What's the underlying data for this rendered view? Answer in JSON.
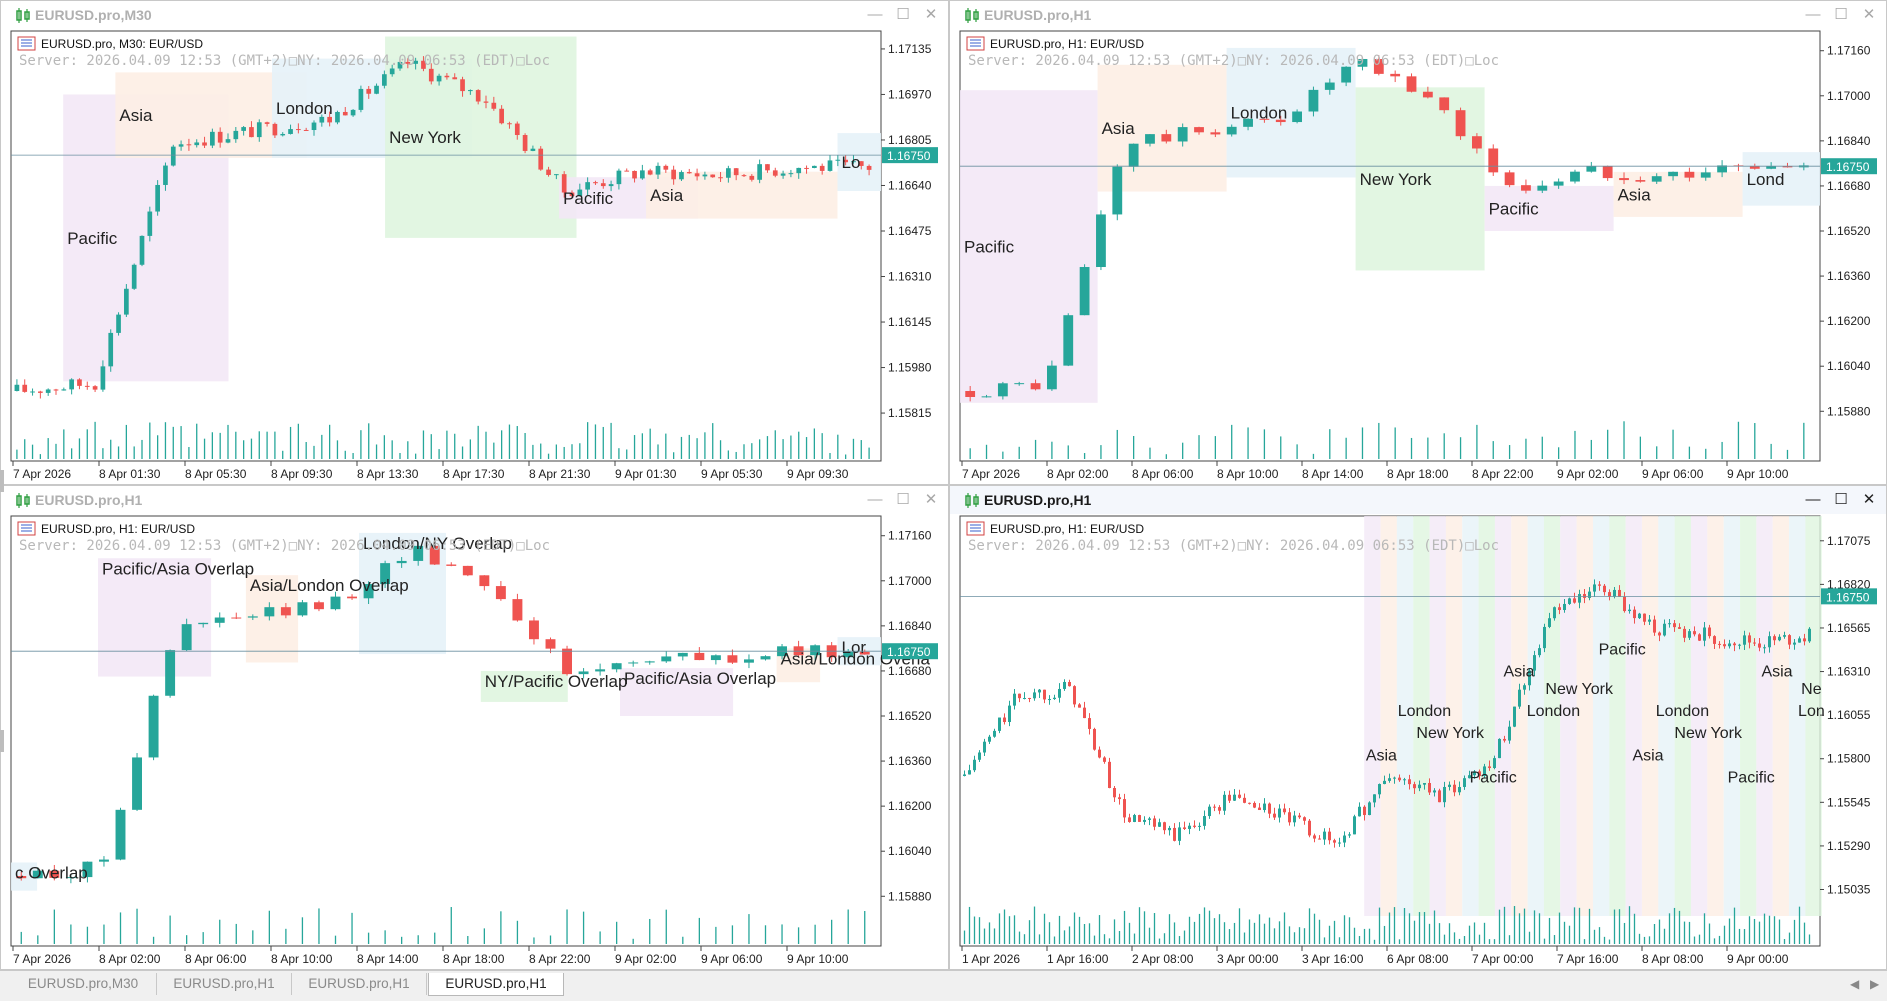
{
  "charts": [
    {
      "title": "EURUSD.pro,M30",
      "subtitle": "EURUSD.pro, M30:  EUR/USD",
      "server_line": "Server: 2026.04.09 12:53 (GMT+2)□NY: 2026.04.09 06:53 (EDT)□Loc",
      "price_ticks": [
        "1.17135",
        "1.16970",
        "1.16805",
        "1.16640",
        "1.16475",
        "1.16310",
        "1.16145",
        "1.15980",
        "1.15815"
      ],
      "price_min": 1.1575,
      "price_max": 1.172,
      "current_price": "1.16750",
      "current_value": 1.1675,
      "time_labels": [
        "7 Apr 2026",
        "8 Apr 01:30",
        "8 Apr 05:30",
        "8 Apr 09:30",
        "8 Apr 13:30",
        "8 Apr 17:30",
        "8 Apr 21:30",
        "9 Apr 01:30",
        "9 Apr 05:30",
        "9 Apr 09:30"
      ],
      "sessions": [
        {
          "name": "Pacific",
          "type": "pacific",
          "from": 0.06,
          "to": 0.25,
          "hi": 1.1697,
          "lo": 1.1593
        },
        {
          "name": "Asia",
          "type": "asia",
          "from": 0.12,
          "to": 0.34,
          "hi": 1.1705,
          "lo": 1.1674
        },
        {
          "name": "London",
          "type": "london",
          "from": 0.3,
          "to": 0.53,
          "hi": 1.171,
          "lo": 1.1674
        },
        {
          "name": "New York",
          "type": "ny",
          "from": 0.43,
          "to": 0.65,
          "hi": 1.1718,
          "lo": 1.1645
        },
        {
          "name": "Pacific",
          "type": "pacific",
          "from": 0.63,
          "to": 0.79,
          "hi": 1.1667,
          "lo": 1.1652
        },
        {
          "name": "Asia",
          "type": "asia",
          "from": 0.73,
          "to": 0.95,
          "hi": 1.1669,
          "lo": 1.1652
        },
        {
          "name": "Lo",
          "type": "london",
          "from": 0.95,
          "to": 1.02,
          "hi": 1.1683,
          "lo": 1.1662
        }
      ]
    },
    {
      "title": "EURUSD.pro,H1",
      "subtitle": "EURUSD.pro, H1:  EUR/USD",
      "server_line": "Server: 2026.04.09 12:53 (GMT+2)□NY: 2026.04.09 06:53 (EDT)□Loc",
      "price_ticks": [
        "1.17160",
        "1.17000",
        "1.16840",
        "1.16680",
        "1.16520",
        "1.16360",
        "1.16200",
        "1.16040",
        "1.15880"
      ],
      "price_min": 1.1581,
      "price_max": 1.1723,
      "current_price": "1.16750",
      "current_value": 1.1675,
      "time_labels": [
        "7 Apr 2026",
        "8 Apr 02:00",
        "8 Apr 06:00",
        "8 Apr 10:00",
        "8 Apr 14:00",
        "8 Apr 18:00",
        "8 Apr 22:00",
        "9 Apr 02:00",
        "9 Apr 06:00",
        "9 Apr 10:00"
      ],
      "sessions": [
        {
          "name": "Pacific",
          "type": "pacific",
          "from": 0.0,
          "to": 0.16,
          "hi": 1.1702,
          "lo": 1.1591
        },
        {
          "name": "Asia",
          "type": "asia",
          "from": 0.16,
          "to": 0.31,
          "hi": 1.1711,
          "lo": 1.1666
        },
        {
          "name": "London",
          "type": "london",
          "from": 0.31,
          "to": 0.46,
          "hi": 1.1717,
          "lo": 1.1671
        },
        {
          "name": "New York",
          "type": "ny",
          "from": 0.46,
          "to": 0.61,
          "hi": 1.1703,
          "lo": 1.1638
        },
        {
          "name": "Pacific",
          "type": "pacific",
          "from": 0.61,
          "to": 0.76,
          "hi": 1.1668,
          "lo": 1.1652
        },
        {
          "name": "Asia",
          "type": "asia",
          "from": 0.76,
          "to": 0.91,
          "hi": 1.1673,
          "lo": 1.1657
        },
        {
          "name": "Lond",
          "type": "london",
          "from": 0.91,
          "to": 1.02,
          "hi": 1.168,
          "lo": 1.1661
        }
      ]
    },
    {
      "title": "EURUSD.pro,H1",
      "subtitle": "EURUSD.pro, H1:  EUR/USD",
      "server_line": "Server: 2026.04.09 12:53 (GMT+2)□NY: 2026.04.09 06:53 (EDT)□Loc",
      "price_ticks": [
        "1.17160",
        "1.17000",
        "1.16840",
        "1.16680",
        "1.16520",
        "1.16360",
        "1.16200",
        "1.16040",
        "1.15880"
      ],
      "price_min": 1.1581,
      "price_max": 1.1723,
      "current_price": "1.16750",
      "current_value": 1.1675,
      "time_labels": [
        "7 Apr 2026",
        "8 Apr 02:00",
        "8 Apr 06:00",
        "8 Apr 10:00",
        "8 Apr 14:00",
        "8 Apr 18:00",
        "8 Apr 22:00",
        "9 Apr 02:00",
        "9 Apr 06:00",
        "9 Apr 10:00"
      ],
      "sessions": [
        {
          "name": "c Overlap",
          "type": "london",
          "from": 0.0,
          "to": 0.03,
          "hi": 1.16,
          "lo": 1.159
        },
        {
          "name": "Pacific/Asia Overlap",
          "type": "pacific",
          "from": 0.1,
          "to": 0.23,
          "hi": 1.1708,
          "lo": 1.1666
        },
        {
          "name": "Asia/London Overlap",
          "type": "asia",
          "from": 0.27,
          "to": 0.33,
          "hi": 1.1702,
          "lo": 1.1671
        },
        {
          "name": "London/NY Overlap",
          "type": "london",
          "from": 0.4,
          "to": 0.5,
          "hi": 1.1717,
          "lo": 1.1674
        },
        {
          "name": "NY/Pacific Overlap",
          "type": "ny",
          "from": 0.54,
          "to": 0.64,
          "hi": 1.1668,
          "lo": 1.1657
        },
        {
          "name": "Pacific/Asia Overlap",
          "type": "pacific",
          "from": 0.7,
          "to": 0.83,
          "hi": 1.1669,
          "lo": 1.1652
        },
        {
          "name": "Asia/London Overla",
          "type": "asia",
          "from": 0.88,
          "to": 0.93,
          "hi": 1.1676,
          "lo": 1.1664
        },
        {
          "name": "Lor",
          "type": "london",
          "from": 0.95,
          "to": 1.02,
          "hi": 1.168,
          "lo": 1.167
        }
      ]
    },
    {
      "title": "EURUSD.pro,H1",
      "subtitle": "EURUSD.pro, H1:  EUR/USD",
      "server_line": "Server: 2026.04.09 12:53 (GMT+2)□NY: 2026.04.09 06:53 (EDT)□Loc",
      "price_ticks": [
        "1.17075",
        "1.16820",
        "1.16565",
        "1.16310",
        "1.16055",
        "1.15800",
        "1.15545",
        "1.15290",
        "1.15035"
      ],
      "price_min": 1.1488,
      "price_max": 1.1722,
      "current_price": "1.16750",
      "current_value": 1.1675,
      "time_labels": [
        "1 Apr 2026",
        "1 Apr 16:00",
        "2 Apr 08:00",
        "3 Apr 00:00",
        "3 Apr 16:00",
        "6 Apr 08:00",
        "7 Apr 00:00",
        "7 Apr 16:00",
        "8 Apr 08:00",
        "9 Apr 00:00"
      ],
      "overlay_labels": [
        {
          "text": "Asia",
          "x": 0.49,
          "y": 1.1579
        },
        {
          "text": "London",
          "x": 0.54,
          "y": 1.1605
        },
        {
          "text": "New York",
          "x": 0.57,
          "y": 1.1592
        },
        {
          "text": "Pacific",
          "x": 0.62,
          "y": 1.1566
        },
        {
          "text": "Asia",
          "x": 0.65,
          "y": 1.1628
        },
        {
          "text": "London",
          "x": 0.69,
          "y": 1.1605
        },
        {
          "text": "New York",
          "x": 0.72,
          "y": 1.1618
        },
        {
          "text": "Pacific",
          "x": 0.77,
          "y": 1.1641
        },
        {
          "text": "Asia",
          "x": 0.8,
          "y": 1.1579
        },
        {
          "text": "London",
          "x": 0.84,
          "y": 1.1605
        },
        {
          "text": "New York",
          "x": 0.87,
          "y": 1.1592
        },
        {
          "text": "Pacific",
          "x": 0.92,
          "y": 1.1566
        },
        {
          "text": "Asia",
          "x": 0.95,
          "y": 1.1628
        },
        {
          "text": "Ne",
          "x": 0.99,
          "y": 1.1618
        },
        {
          "text": "Lon",
          "x": 0.99,
          "y": 1.1605
        }
      ]
    }
  ],
  "tabs": [
    "EURUSD.pro,M30",
    "EURUSD.pro,H1",
    "EURUSD.pro,H1",
    "EURUSD.pro,H1"
  ],
  "active_tab": 3,
  "colors": {
    "bull": "#26a69a",
    "bear": "#ef5350",
    "pacific": "#f3e8f6",
    "asia": "#fdeee4",
    "london": "#e6f2f8",
    "ny": "#dff5df",
    "price_tag": "#26a69a",
    "grid_text": "#222222"
  },
  "window_buttons": {
    "minimize": "—",
    "maximize": "☐",
    "close": "✕"
  }
}
